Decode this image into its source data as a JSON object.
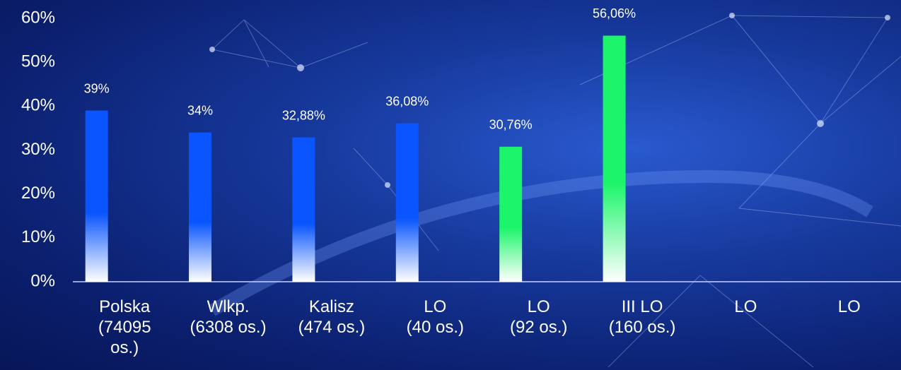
{
  "chart_data": {
    "type": "bar",
    "categories": [
      "Polska\n(74095\nos.)",
      "Wlkp.\n(6308 os.)",
      "Kalisz\n(474 os.)",
      "LO\n(40 os.)",
      "LO\n(92 os.)",
      "III LO\n(160 os.)",
      "LO",
      "LO"
    ],
    "values": [
      39,
      34,
      32.88,
      36.08,
      30.76,
      56.06,
      null,
      null
    ],
    "value_labels": [
      "39%",
      "34%",
      "32,88%",
      "36,08%",
      "30,76%",
      "56,06%",
      null,
      null
    ],
    "colors": [
      "#0a55ff",
      "#0a55ff",
      "#0a55ff",
      "#0a55ff",
      "#1cf56a",
      "#1cf56a",
      null,
      null
    ],
    "ylim": [
      0,
      60
    ],
    "yticks": [
      {
        "value": 0,
        "label": "0%"
      },
      {
        "value": 10,
        "label": "10%"
      },
      {
        "value": 20,
        "label": "20%"
      },
      {
        "value": 30,
        "label": "30%"
      },
      {
        "value": 40,
        "label": "40%"
      },
      {
        "value": 50,
        "label": "50%"
      },
      {
        "value": 60,
        "label": "60%"
      }
    ]
  }
}
